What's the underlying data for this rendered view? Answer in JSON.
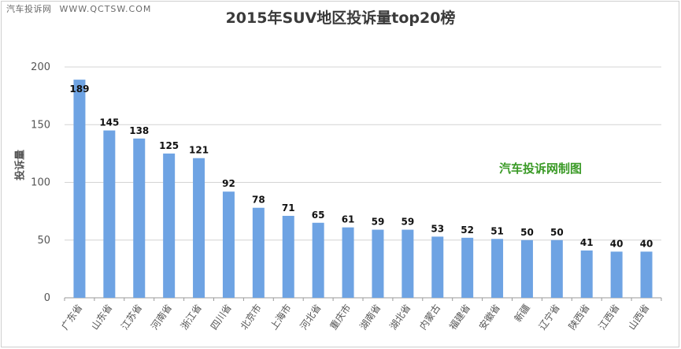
{
  "watermark": {
    "site": "汽车投诉网",
    "url": "WWW.QCTSW.COM"
  },
  "annotation": "汽车投诉网制图",
  "colors": {
    "bar": "#6ea3e3",
    "grid": "#d4d4d4",
    "axis": "#9a9a9a",
    "title": "#3a3a3a",
    "annotation": "#3a9a26"
  },
  "chart_data": {
    "type": "bar",
    "title": "2015年SUV地区投诉量top20榜",
    "xlabel": "",
    "ylabel": "投诉量",
    "ylim": [
      0,
      200
    ],
    "yticks": [
      0,
      50,
      100,
      150,
      200
    ],
    "grid": true,
    "categories": [
      "广东省",
      "山东省",
      "江苏省",
      "河南省",
      "浙江省",
      "四川省",
      "北京市",
      "上海市",
      "河北省",
      "重庆市",
      "湖南省",
      "湖北省",
      "内蒙古",
      "福建省",
      "安徽省",
      "新疆",
      "辽宁省",
      "陕西省",
      "江西省",
      "山西省"
    ],
    "values": [
      189,
      145,
      138,
      125,
      121,
      92,
      78,
      71,
      65,
      61,
      59,
      59,
      53,
      52,
      51,
      50,
      50,
      41,
      40,
      40
    ]
  }
}
